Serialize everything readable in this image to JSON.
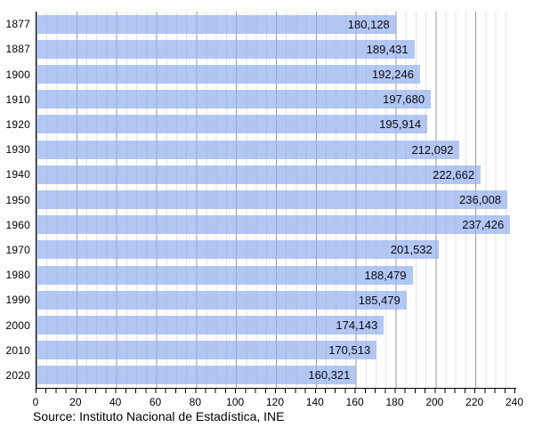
{
  "chart_data": {
    "type": "bar",
    "orientation": "horizontal",
    "title": "",
    "xlabel": "",
    "ylabel": "",
    "categories": [
      "1877",
      "1887",
      "1900",
      "1910",
      "1920",
      "1930",
      "1940",
      "1950",
      "1960",
      "1970",
      "1980",
      "1990",
      "2000",
      "2010",
      "2020"
    ],
    "values": [
      180128,
      189431,
      192246,
      197680,
      195914,
      212092,
      222662,
      236008,
      237426,
      201532,
      188479,
      185479,
      174143,
      170513,
      160321
    ],
    "value_labels": [
      "180,128",
      "189,431",
      "192,246",
      "197,680",
      "195,914",
      "212,092",
      "222,662",
      "236,008",
      "237,426",
      "201,532",
      "188,479",
      "185,479",
      "174,143",
      "170,513",
      "160,321"
    ],
    "xlim": [
      0,
      240
    ],
    "x_axis_unit": "thousands",
    "x_tick_labels": [
      "0",
      "20",
      "40",
      "60",
      "80",
      "100",
      "120",
      "140",
      "160",
      "180",
      "200",
      "220",
      "240"
    ],
    "x_major_tick_step": 20,
    "x_minor_tick_step": 5,
    "grid": "vertical gridlines: light minor every 5, darker major every 20",
    "legend": "none",
    "bar_color": "#b3c7f3",
    "grid_minor_color": "#dcdcdc",
    "grid_major_color": "#9b9b9b",
    "axis_color": "#000000",
    "label_color": "#0a0a14"
  },
  "source_note": "Source: Instituto Nacional de Estadística, INE"
}
